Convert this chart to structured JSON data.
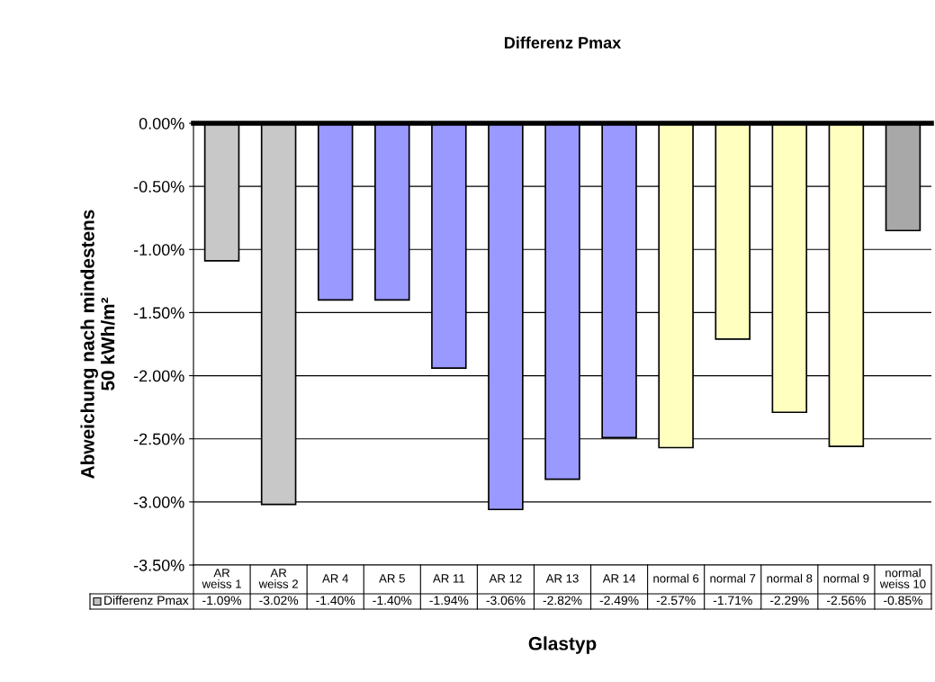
{
  "chart_data": {
    "type": "bar",
    "title": "Differenz Pmax",
    "xlabel": "Glastyp",
    "ylabel": "Abweichung nach mindestens\n50 kWh/m²",
    "categories": [
      "AR\nweiss 1",
      "AR\nweiss 2",
      "AR 4",
      "AR 5",
      "AR 11",
      "AR 12",
      "AR 13",
      "AR 14",
      "normal 6",
      "normal 7",
      "normal 8",
      "normal 9",
      "normal\nweiss 10"
    ],
    "series": [
      {
        "name": "Differenz Pmax",
        "color": "#c0c0c0",
        "values": [
          -1.09,
          -3.02,
          -1.4,
          -1.4,
          -1.94,
          -3.06,
          -2.82,
          -2.49,
          -2.57,
          -1.71,
          -2.29,
          -2.56,
          -0.85
        ],
        "colors": [
          "#c8c8c8",
          "#c8c8c8",
          "#9999ff",
          "#9999ff",
          "#9999ff",
          "#9999ff",
          "#9999ff",
          "#9999ff",
          "#ffffc0",
          "#ffffc0",
          "#ffffc0",
          "#ffffc0",
          "#a8a8a8"
        ],
        "value_labels": [
          "-1.09%",
          "-3.02%",
          "-1.40%",
          "-1.40%",
          "-1.94%",
          "-3.06%",
          "-2.82%",
          "-2.49%",
          "-2.57%",
          "-1.71%",
          "-2.29%",
          "-2.56%",
          "-0.85%"
        ]
      }
    ],
    "ylim": [
      -3.5,
      0
    ],
    "yticks": [
      {
        "value": 0,
        "label": "0.00%"
      },
      {
        "value": -0.5,
        "label": "-0.50%"
      },
      {
        "value": -1.0,
        "label": "-1.00%"
      },
      {
        "value": -1.5,
        "label": "-1.50%"
      },
      {
        "value": -2.0,
        "label": "-2.00%"
      },
      {
        "value": -2.5,
        "label": "-2.50%"
      },
      {
        "value": -3.0,
        "label": "-3.00%"
      },
      {
        "value": -3.5,
        "label": "-3.50%"
      }
    ],
    "grid": "y"
  }
}
